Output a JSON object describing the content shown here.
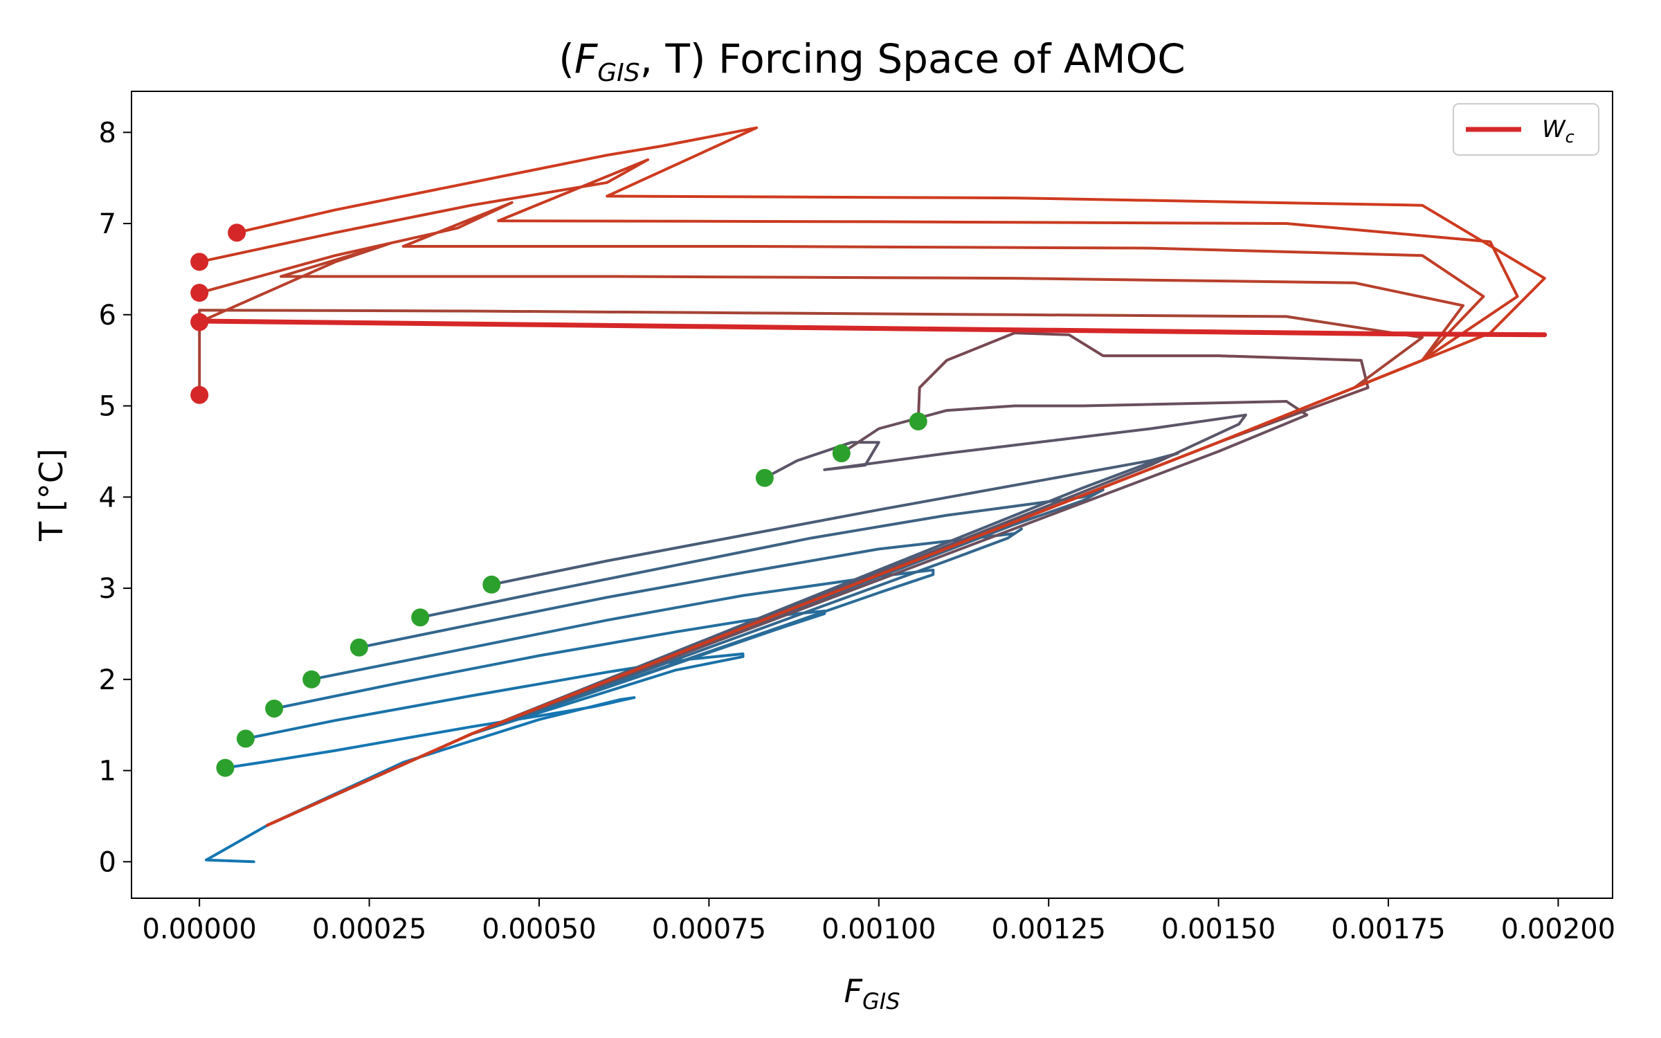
{
  "title": {
    "main": "(",
    "f": "F",
    "f_sub": "GIS",
    "comma": ", T) Forcing Space of AMOC"
  },
  "axes": {
    "xlabel": {
      "main": "F",
      "sub": "GIS"
    },
    "ylabel": "T [°C]"
  },
  "legend": {
    "label_main": "W",
    "label_sub": "c",
    "color": "#d62728",
    "placement": "upper right"
  },
  "colors": {
    "low_T": "#1f77b4",
    "high_T": "#d62728",
    "start_marker": "#2ca02c",
    "end_marker": "#d62728"
  },
  "chart_data": {
    "type": "line",
    "xlim": [
      -0.0001,
      0.00208
    ],
    "ylim": [
      -0.4,
      8.45
    ],
    "xticks": [
      0,
      0.00025,
      0.0005,
      0.00075,
      0.001,
      0.00125,
      0.0015,
      0.00175,
      0.002
    ],
    "xtick_labels": [
      "0.00000",
      "0.00025",
      "0.00050",
      "0.00075",
      "0.00100",
      "0.00125",
      "0.00150",
      "0.00175",
      "0.00200"
    ],
    "yticks": [
      0,
      1,
      2,
      3,
      4,
      5,
      6,
      7,
      8
    ],
    "ytick_labels": [
      "0",
      "1",
      "2",
      "3",
      "4",
      "5",
      "6",
      "7",
      "8"
    ],
    "grid": false,
    "wc_curve": [
      [
        0.0,
        5.93
      ],
      [
        0.00025,
        5.91
      ],
      [
        0.0005,
        5.89
      ],
      [
        0.00075,
        5.87
      ],
      [
        0.001,
        5.85
      ],
      [
        0.00125,
        5.83
      ],
      [
        0.0015,
        5.81
      ],
      [
        0.00175,
        5.79
      ],
      [
        0.00198,
        5.78
      ]
    ],
    "trajectories": [
      {
        "start": [
          3.8e-05,
          1.03
        ],
        "color": "#1576b2",
        "points": [
          [
            3.8e-05,
            1.03
          ],
          [
            0.0001,
            1.1
          ],
          [
            0.0002,
            1.22
          ],
          [
            0.0003,
            1.35
          ],
          [
            0.0004,
            1.48
          ],
          [
            0.0005,
            1.6
          ],
          [
            0.00058,
            1.7
          ],
          [
            0.00064,
            1.8
          ],
          [
            0.00062,
            1.78
          ],
          [
            0.0005,
            1.56
          ],
          [
            0.0003,
            1.09
          ],
          [
            0.0001,
            0.4
          ],
          [
            1e-05,
            0.02
          ],
          [
            8e-05,
            0.0
          ]
        ]
      },
      {
        "start": [
          6.8e-05,
          1.35
        ],
        "color": "#1a72a8",
        "points": [
          [
            6.8e-05,
            1.35
          ],
          [
            0.0002,
            1.55
          ],
          [
            0.0004,
            1.82
          ],
          [
            0.0006,
            2.08
          ],
          [
            0.00072,
            2.22
          ],
          [
            0.0008,
            2.28
          ],
          [
            0.0008,
            2.25
          ],
          [
            0.0007,
            2.1
          ],
          [
            0.0004,
            1.4
          ],
          [
            0.0001,
            0.4
          ]
        ]
      },
      {
        "start": [
          0.00011,
          1.68
        ],
        "color": "#236ea0",
        "points": [
          [
            0.00011,
            1.68
          ],
          [
            0.0003,
            1.97
          ],
          [
            0.0005,
            2.26
          ],
          [
            0.0007,
            2.52
          ],
          [
            0.00085,
            2.7
          ],
          [
            0.00092,
            2.75
          ],
          [
            0.00092,
            2.72
          ],
          [
            0.00085,
            2.55
          ],
          [
            0.0004,
            1.4
          ],
          [
            0.0001,
            0.4
          ]
        ]
      },
      {
        "start": [
          0.000165,
          2.0
        ],
        "color": "#2b6b97",
        "points": [
          [
            0.000165,
            2.0
          ],
          [
            0.0004,
            2.35
          ],
          [
            0.0006,
            2.65
          ],
          [
            0.0008,
            2.92
          ],
          [
            0.001,
            3.13
          ],
          [
            0.00108,
            3.2
          ],
          [
            0.00108,
            3.15
          ],
          [
            0.001,
            2.95
          ],
          [
            0.0004,
            1.4
          ],
          [
            0.0001,
            0.4
          ]
        ]
      },
      {
        "start": [
          0.000235,
          2.35
        ],
        "color": "#33668d",
        "points": [
          [
            0.000235,
            2.35
          ],
          [
            0.0004,
            2.6
          ],
          [
            0.0006,
            2.9
          ],
          [
            0.0008,
            3.17
          ],
          [
            0.001,
            3.43
          ],
          [
            0.0012,
            3.6
          ],
          [
            0.00121,
            3.65
          ],
          [
            0.00119,
            3.55
          ],
          [
            0.0011,
            3.3
          ],
          [
            0.0004,
            1.4
          ],
          [
            0.0001,
            0.4
          ]
        ]
      },
      {
        "start": [
          0.000325,
          2.68
        ],
        "color": "#3d6283",
        "points": [
          [
            0.000325,
            2.68
          ],
          [
            0.0005,
            2.95
          ],
          [
            0.0007,
            3.25
          ],
          [
            0.0009,
            3.55
          ],
          [
            0.0011,
            3.8
          ],
          [
            0.0013,
            4.0
          ],
          [
            0.00133,
            4.08
          ],
          [
            0.0013,
            3.96
          ],
          [
            0.0012,
            3.7
          ],
          [
            0.0004,
            1.4
          ],
          [
            0.0001,
            0.4
          ]
        ]
      },
      {
        "start": [
          0.00043,
          3.04
        ],
        "color": "#4a5c77",
        "points": [
          [
            0.00043,
            3.04
          ],
          [
            0.0006,
            3.3
          ],
          [
            0.0008,
            3.58
          ],
          [
            0.001,
            3.86
          ],
          [
            0.0012,
            4.13
          ],
          [
            0.0014,
            4.4
          ],
          [
            0.00144,
            4.48
          ],
          [
            0.0014,
            4.38
          ],
          [
            0.0013,
            4.1
          ],
          [
            0.0004,
            1.4
          ],
          [
            0.0001,
            0.4
          ]
        ]
      },
      {
        "start": [
          0.000832,
          4.21
        ],
        "color": "#5c5569",
        "points": [
          [
            0.000832,
            4.21
          ],
          [
            0.00088,
            4.4
          ],
          [
            0.00096,
            4.6
          ],
          [
            0.001,
            4.6
          ],
          [
            0.00098,
            4.35
          ],
          [
            0.00092,
            4.3
          ],
          [
            0.0011,
            4.48
          ],
          [
            0.0014,
            4.75
          ],
          [
            0.00154,
            4.9
          ],
          [
            0.00153,
            4.8
          ],
          [
            0.0014,
            4.35
          ],
          [
            0.0004,
            1.4
          ],
          [
            0.0001,
            0.4
          ]
        ]
      },
      {
        "start": [
          0.000945,
          4.48
        ],
        "color": "#6a4f5d",
        "points": [
          [
            0.000945,
            4.48
          ],
          [
            0.001,
            4.75
          ],
          [
            0.0011,
            4.95
          ],
          [
            0.0012,
            5.0
          ],
          [
            0.0013,
            5.0
          ],
          [
            0.0016,
            5.05
          ],
          [
            0.00163,
            4.9
          ],
          [
            0.0015,
            4.5
          ],
          [
            0.0004,
            1.4
          ],
          [
            0.0001,
            0.4
          ]
        ]
      },
      {
        "start": [
          0.001058,
          4.83
        ],
        "color": "#784851",
        "points": [
          [
            0.001058,
            4.83
          ],
          [
            0.00106,
            5.2
          ],
          [
            0.0011,
            5.5
          ],
          [
            0.0012,
            5.8
          ],
          [
            0.00128,
            5.78
          ],
          [
            0.00133,
            5.55
          ],
          [
            0.0015,
            5.55
          ],
          [
            0.00171,
            5.5
          ],
          [
            0.00172,
            5.2
          ],
          [
            0.0015,
            4.6
          ],
          [
            0.0004,
            1.4
          ],
          [
            0.0001,
            0.4
          ]
        ]
      },
      {
        "start": [
          0.0,
          5.12
        ],
        "color": "#a54335",
        "points": [
          [
            0.0,
            5.12
          ],
          [
            0.0,
            6.05
          ],
          [
            0.0004,
            6.04
          ],
          [
            0.0008,
            6.02
          ],
          [
            0.0012,
            6.0
          ],
          [
            0.0016,
            5.98
          ],
          [
            0.0018,
            5.75
          ],
          [
            0.0017,
            5.2
          ],
          [
            0.0015,
            4.6
          ],
          [
            0.0004,
            1.4
          ],
          [
            0.0001,
            0.4
          ]
        ]
      },
      {
        "start": [
          0.0,
          5.92
        ],
        "color": "#b8402c",
        "points": [
          [
            0.0,
            5.92
          ],
          [
            0.0001,
            6.25
          ],
          [
            0.0002,
            6.58
          ],
          [
            0.00028,
            6.78
          ],
          [
            0.00012,
            6.42
          ],
          [
            0.0006,
            6.42
          ],
          [
            0.0012,
            6.4
          ],
          [
            0.0017,
            6.35
          ],
          [
            0.00186,
            6.1
          ],
          [
            0.0018,
            5.5
          ],
          [
            0.0015,
            4.6
          ],
          [
            0.0004,
            1.4
          ],
          [
            0.0001,
            0.4
          ]
        ]
      },
      {
        "start": [
          0.0,
          6.24
        ],
        "color": "#c23d26",
        "points": [
          [
            0.0,
            6.24
          ],
          [
            0.0002,
            6.65
          ],
          [
            0.00038,
            6.95
          ],
          [
            0.00046,
            7.23
          ],
          [
            0.0003,
            6.75
          ],
          [
            0.0008,
            6.75
          ],
          [
            0.0014,
            6.73
          ],
          [
            0.0018,
            6.65
          ],
          [
            0.00189,
            6.2
          ],
          [
            0.0018,
            5.5
          ],
          [
            0.0015,
            4.6
          ],
          [
            0.0004,
            1.4
          ],
          [
            0.0001,
            0.4
          ]
        ]
      },
      {
        "start": [
          0.0,
          6.58
        ],
        "color": "#c93a20",
        "points": [
          [
            0.0,
            6.58
          ],
          [
            0.0002,
            6.9
          ],
          [
            0.0004,
            7.2
          ],
          [
            0.0006,
            7.45
          ],
          [
            0.00066,
            7.7
          ],
          [
            0.00044,
            7.03
          ],
          [
            0.001,
            7.02
          ],
          [
            0.0016,
            7.0
          ],
          [
            0.0019,
            6.8
          ],
          [
            0.00194,
            6.2
          ],
          [
            0.0018,
            5.5
          ],
          [
            0.0015,
            4.6
          ],
          [
            0.0004,
            1.4
          ],
          [
            0.0001,
            0.4
          ]
        ]
      },
      {
        "start": [
          5.5e-05,
          6.9
        ],
        "color": "#cf3a1e",
        "points": [
          [
            5.5e-05,
            6.9
          ],
          [
            0.0002,
            7.15
          ],
          [
            0.0004,
            7.45
          ],
          [
            0.0006,
            7.75
          ],
          [
            0.00068,
            7.85
          ],
          [
            0.00082,
            8.05
          ],
          [
            0.0006,
            7.3
          ],
          [
            0.0012,
            7.28
          ],
          [
            0.0018,
            7.2
          ],
          [
            0.00198,
            6.4
          ],
          [
            0.0019,
            5.8
          ],
          [
            0.0018,
            5.5
          ],
          [
            0.0015,
            4.6
          ],
          [
            0.0004,
            1.4
          ],
          [
            0.0001,
            0.4
          ]
        ]
      }
    ]
  }
}
